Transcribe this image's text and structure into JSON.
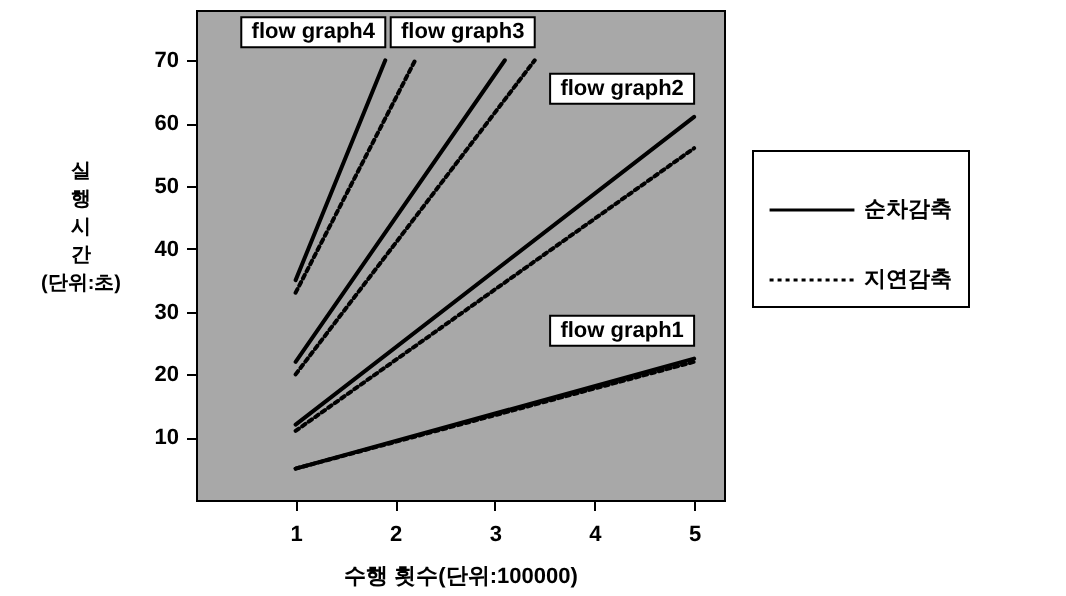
{
  "chart_data": {
    "type": "line",
    "xlabel": "수행 횟수(단위:100000)",
    "ylabel": "실행시간 (단위:초)",
    "xlim": [
      0,
      5.3
    ],
    "xticks": [
      1,
      2,
      3,
      4,
      5
    ],
    "ylim": [
      0,
      78
    ],
    "yticks": [
      10,
      20,
      30,
      40,
      50,
      60,
      70
    ],
    "legend": "right",
    "grid": false,
    "series": [
      {
        "name": "순차감축",
        "color": "#000000",
        "line_style": "solid",
        "x": [
          1,
          5
        ],
        "values": [
          5,
          22.5
        ]
      },
      {
        "name": "지연감축",
        "color": "#000000",
        "line_style": "dotted",
        "x": [
          1,
          5
        ],
        "values": [
          5,
          22
        ]
      },
      {
        "color": "#000000",
        "line_style": "solid",
        "x": [
          1,
          5
        ],
        "values": [
          12,
          61
        ]
      },
      {
        "color": "#000000",
        "line_style": "dotted",
        "x": [
          1,
          5
        ],
        "values": [
          11,
          56
        ]
      },
      {
        "color": "#000000",
        "line_style": "solid",
        "x": [
          1,
          3.1
        ],
        "values": [
          22,
          70
        ]
      },
      {
        "color": "#000000",
        "line_style": "dotted",
        "x": [
          1,
          3.4
        ],
        "values": [
          20,
          70
        ]
      },
      {
        "color": "#000000",
        "line_style": "solid",
        "x": [
          1,
          1.9
        ],
        "values": [
          35,
          70
        ]
      },
      {
        "color": "#000000",
        "line_style": "dotted",
        "x": [
          1,
          2.2
        ],
        "values": [
          33,
          70
        ]
      }
    ],
    "annotations": [
      {
        "text": "flow graph4",
        "x": 1.9,
        "y": 70
      },
      {
        "text": "flow graph3",
        "x": 3.4,
        "y": 70
      },
      {
        "text": "flow graph2",
        "x": 5,
        "y": 61
      },
      {
        "text": "flow graph1",
        "x": 5,
        "y": 22.5
      }
    ]
  }
}
